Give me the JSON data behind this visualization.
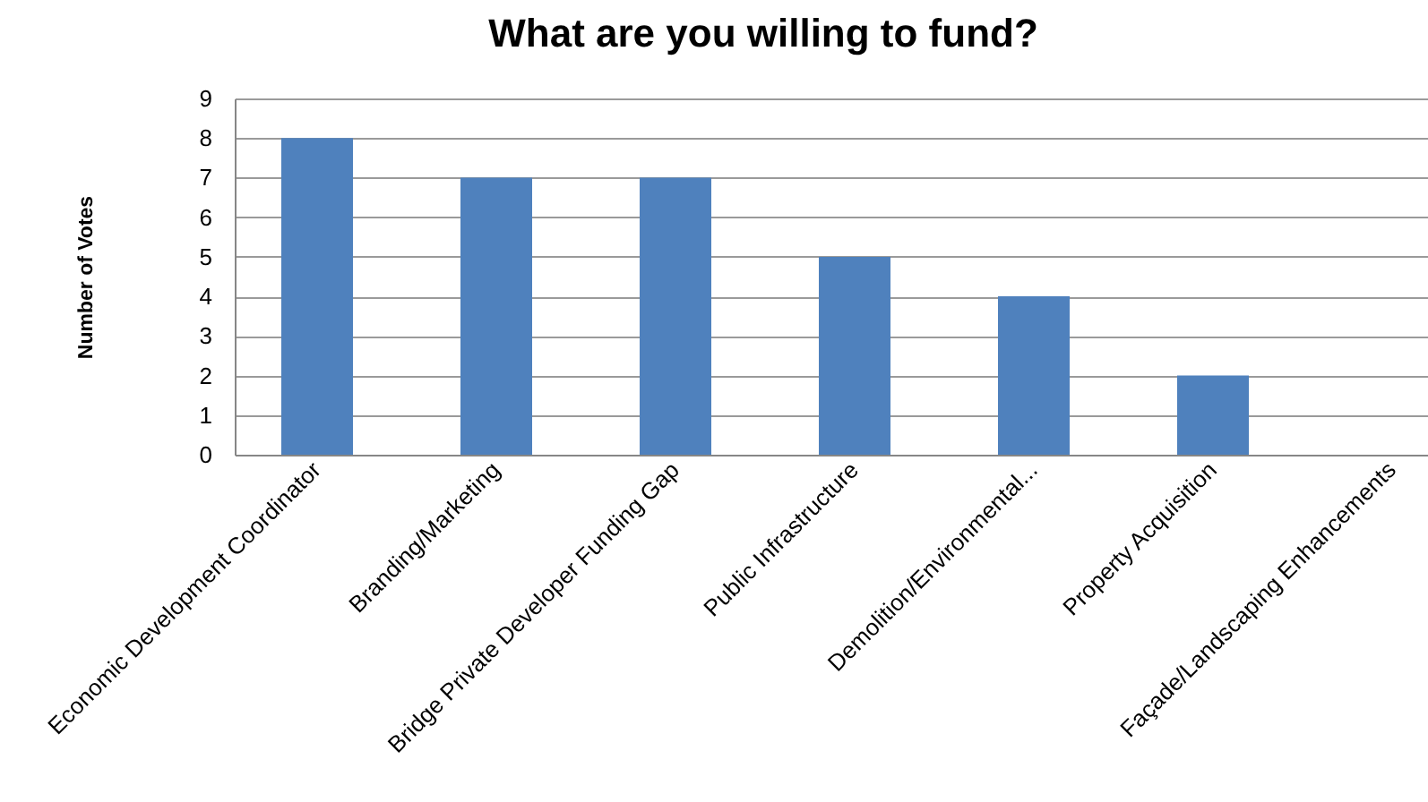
{
  "chart_data": {
    "type": "bar",
    "title": "What are you willing to fund?",
    "ylabel": "Number of Votes",
    "categories": [
      "Economic Development Coordinator",
      "Branding/Marketing",
      "Bridge Private Developer Funding Gap",
      "Public Infrastructure",
      "Demolition/Environmental...",
      "Property Acquisition",
      "Façade/Landscaping Enhancements"
    ],
    "values": [
      8,
      7,
      7,
      5,
      4,
      2,
      0
    ],
    "color": "#4f81bd",
    "ylim": [
      0,
      9
    ],
    "yticks": [
      0,
      1,
      2,
      3,
      4,
      5,
      6,
      7,
      8,
      9
    ],
    "grid": "y"
  }
}
